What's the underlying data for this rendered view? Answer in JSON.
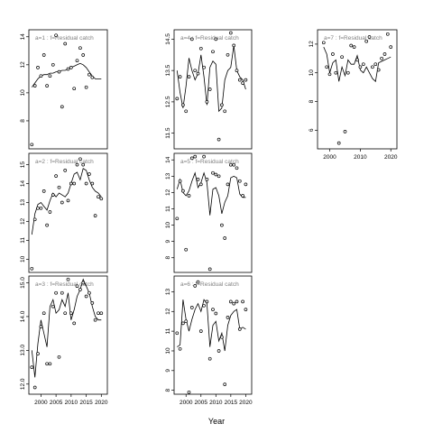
{
  "figure": {
    "xlabel": "Year"
  },
  "chart_data": [
    {
      "type": "scatter",
      "title": "a=1 : f=Residual catch",
      "xlim": [
        1996,
        2022
      ],
      "ylim": [
        6,
        14.5
      ],
      "xticks": [],
      "yticks": [
        8,
        10,
        12,
        14
      ],
      "points": {
        "x": [
          1997,
          1998,
          1999,
          2000,
          2001,
          2002,
          2003,
          2004,
          2005,
          2006,
          2007,
          2008,
          2009,
          2010,
          2011,
          2012,
          2013,
          2014,
          2015,
          2016,
          2017
        ],
        "y": [
          6.3,
          10.5,
          11.8,
          11.2,
          12.7,
          10.5,
          11.2,
          12.0,
          14.1,
          11.5,
          9.0,
          13.5,
          11.7,
          11.8,
          10.3,
          12.3,
          13.2,
          12.7,
          10.4,
          11.3,
          11.1
        ]
      },
      "fit": {
        "x": [
          1997,
          1998,
          1999,
          2000,
          2001,
          2002,
          2003,
          2004,
          2005,
          2006,
          2007,
          2008,
          2009,
          2010,
          2011,
          2012,
          2013,
          2014,
          2015,
          2016,
          2017,
          2018,
          2019,
          2020
        ],
        "y": [
          10.4,
          10.7,
          11.0,
          11.2,
          11.3,
          11.3,
          11.4,
          11.4,
          11.5,
          11.5,
          11.6,
          11.6,
          11.7,
          11.8,
          11.9,
          12.0,
          12.1,
          12.0,
          11.8,
          11.5,
          11.2,
          11.0,
          11.0,
          11.0
        ]
      }
    },
    {
      "type": "scatter",
      "title": "a=2 : f=Residual catch",
      "xlim": [
        1996,
        2022
      ],
      "ylim": [
        9.3,
        15.6
      ],
      "xticks": [],
      "yticks": [
        10,
        11,
        12,
        13,
        14,
        15
      ],
      "points": {
        "x": [
          1997,
          1998,
          1999,
          2000,
          2001,
          2002,
          2003,
          2004,
          2005,
          2006,
          2007,
          2008,
          2009,
          2010,
          2011,
          2012,
          2013,
          2014,
          2015,
          2016,
          2017,
          2018,
          2019,
          2020
        ],
        "y": [
          9.5,
          12.1,
          12.7,
          12.7,
          13.6,
          11.8,
          12.5,
          13.4,
          14.4,
          13.8,
          13.0,
          14.7,
          13.1,
          14.0,
          14.0,
          15.0,
          15.3,
          15.0,
          14.0,
          14.5,
          14.0,
          12.3,
          13.3,
          13.2
        ]
      },
      "fit": {
        "x": [
          1997,
          1998,
          1999,
          2000,
          2001,
          2002,
          2003,
          2004,
          2005,
          2006,
          2007,
          2008,
          2009,
          2010,
          2011,
          2012,
          2013,
          2014,
          2015,
          2016,
          2017,
          2018,
          2019,
          2020
        ],
        "y": [
          11.3,
          12.4,
          12.9,
          13.0,
          12.8,
          12.6,
          13.1,
          13.5,
          13.3,
          13.5,
          13.4,
          13.3,
          13.5,
          14.0,
          14.5,
          14.6,
          14.2,
          14.8,
          14.7,
          14.2,
          13.8,
          13.6,
          13.5,
          13.3
        ]
      }
    },
    {
      "type": "scatter",
      "title": "a=3 : f=Residual catch",
      "xlim": [
        1996,
        2022
      ],
      "ylim": [
        11.7,
        15.2
      ],
      "xticks": [
        2000,
        2005,
        2010,
        2015,
        2020
      ],
      "yticks": [
        12.0,
        13.0,
        14.0,
        15.0
      ],
      "points": {
        "x": [
          1997,
          1998,
          1999,
          2000,
          2001,
          2002,
          2003,
          2004,
          2005,
          2006,
          2007,
          2008,
          2009,
          2010,
          2011,
          2012,
          2013,
          2014,
          2015,
          2016,
          2017,
          2018,
          2019,
          2020
        ],
        "y": [
          12.5,
          11.9,
          12.9,
          13.7,
          14.1,
          12.6,
          12.6,
          14.3,
          14.7,
          12.8,
          14.7,
          14.1,
          15.1,
          14.1,
          13.8,
          14.9,
          14.8,
          15.0,
          14.6,
          14.7,
          14.4,
          13.9,
          14.1,
          14.1
        ]
      },
      "fit": {
        "x": [
          1997,
          1998,
          1999,
          2000,
          2001,
          2002,
          2003,
          2004,
          2005,
          2006,
          2007,
          2008,
          2009,
          2010,
          2011,
          2012,
          2013,
          2014,
          2015,
          2016,
          2017,
          2018,
          2019,
          2020
        ],
        "y": [
          13.0,
          12.2,
          13.2,
          13.9,
          13.5,
          13.1,
          14.3,
          14.5,
          14.1,
          14.2,
          14.5,
          14.3,
          14.7,
          13.9,
          14.2,
          14.6,
          14.8,
          15.1,
          14.9,
          14.7,
          14.3,
          14.0,
          13.9,
          13.9
        ]
      }
    },
    {
      "type": "scatter",
      "title": "a=4 : f=Residual catch",
      "xlim": [
        1996,
        2022
      ],
      "ylim": [
        11.0,
        14.8
      ],
      "xticks": [],
      "yticks": [
        11.5,
        12.5,
        13.5,
        14.5
      ],
      "points": {
        "x": [
          1997,
          1998,
          1999,
          2000,
          2001,
          2002,
          2003,
          2004,
          2005,
          2006,
          2007,
          2008,
          2009,
          2010,
          2011,
          2012,
          2013,
          2014,
          2015,
          2016,
          2017,
          2018,
          2019,
          2020
        ],
        "y": [
          12.6,
          13.3,
          12.4,
          12.2,
          13.3,
          14.5,
          13.5,
          13.4,
          14.2,
          13.6,
          12.5,
          12.9,
          14.1,
          14.5,
          11.3,
          12.4,
          12.2,
          14.0,
          14.7,
          14.3,
          13.5,
          13.2,
          13.1,
          13.2
        ]
      },
      "fit": {
        "x": [
          1997,
          1998,
          1999,
          2000,
          2001,
          2002,
          2003,
          2004,
          2005,
          2006,
          2007,
          2008,
          2009,
          2010,
          2011,
          2012,
          2013,
          2014,
          2015,
          2016,
          2017,
          2018,
          2019,
          2020
        ],
        "y": [
          13.5,
          12.8,
          12.3,
          13.0,
          13.9,
          13.5,
          13.2,
          13.4,
          14.0,
          13.3,
          12.4,
          13.6,
          13.8,
          13.7,
          12.2,
          12.3,
          13.2,
          13.5,
          13.6,
          14.3,
          13.5,
          13.3,
          13.2,
          12.9
        ]
      }
    },
    {
      "type": "scatter",
      "title": "a=5 : f=Residual catch",
      "xlim": [
        1996,
        2022
      ],
      "ylim": [
        7.1,
        14.4
      ],
      "xticks": [],
      "yticks": [
        8,
        9,
        10,
        11,
        12,
        13,
        14
      ],
      "points": {
        "x": [
          1997,
          1998,
          1999,
          2000,
          2001,
          2002,
          2003,
          2004,
          2005,
          2006,
          2007,
          2008,
          2009,
          2010,
          2011,
          2012,
          2013,
          2014,
          2015,
          2016,
          2017,
          2018,
          2019,
          2020
        ],
        "y": [
          10.4,
          12.7,
          12.1,
          8.5,
          11.8,
          14.1,
          14.2,
          12.8,
          12.5,
          14.2,
          12.8,
          7.3,
          13.2,
          13.1,
          13.0,
          10.0,
          9.2,
          12.5,
          13.7,
          13.7,
          13.5,
          12.7,
          11.8,
          12.5
        ]
      },
      "fit": {
        "x": [
          1997,
          1998,
          1999,
          2000,
          2001,
          2002,
          2003,
          2004,
          2005,
          2006,
          2007,
          2008,
          2009,
          2010,
          2011,
          2012,
          2013,
          2014,
          2015,
          2016,
          2017,
          2018,
          2019,
          2020
        ],
        "y": [
          12.2,
          12.8,
          12.0,
          11.8,
          12.1,
          12.7,
          13.2,
          12.3,
          12.6,
          13.2,
          12.6,
          10.6,
          12.2,
          12.3,
          11.8,
          10.7,
          11.4,
          11.8,
          12.9,
          13.0,
          12.9,
          11.9,
          11.7,
          11.7
        ]
      }
    },
    {
      "type": "scatter",
      "title": "a=6 : f=Residual catch",
      "xlim": [
        1996,
        2022
      ],
      "ylim": [
        7.8,
        13.8
      ],
      "xticks": [
        2000,
        2005,
        2010,
        2015,
        2020
      ],
      "yticks": [
        8,
        9,
        10,
        11,
        12,
        13
      ],
      "points": {
        "x": [
          1997,
          1998,
          1999,
          2000,
          2001,
          2002,
          2003,
          2004,
          2005,
          2006,
          2007,
          2008,
          2009,
          2010,
          2011,
          2012,
          2013,
          2014,
          2015,
          2016,
          2017,
          2018,
          2019,
          2020
        ],
        "y": [
          10.9,
          10.1,
          11.4,
          11.5,
          7.9,
          12.2,
          13.3,
          13.5,
          11.0,
          12.3,
          12.5,
          9.6,
          12.1,
          11.9,
          10.0,
          10.7,
          8.3,
          11.7,
          12.5,
          12.4,
          12.5,
          11.1,
          12.5,
          12.1
        ]
      },
      "fit": {
        "x": [
          1997,
          1998,
          1999,
          2000,
          2001,
          2002,
          2003,
          2004,
          2005,
          2006,
          2007,
          2008,
          2009,
          2010,
          2011,
          2012,
          2013,
          2014,
          2015,
          2016,
          2017,
          2018,
          2019,
          2020
        ],
        "y": [
          10.2,
          10.3,
          12.6,
          11.6,
          11.0,
          11.6,
          12.1,
          12.4,
          12.0,
          12.6,
          12.4,
          10.2,
          11.3,
          11.5,
          10.5,
          10.9,
          10.0,
          11.3,
          11.8,
          12.0,
          12.1,
          11.1,
          11.2,
          11.1
        ]
      }
    },
    {
      "type": "scatter",
      "title": "a=7 : f=Residual catch",
      "xlim": [
        1996,
        2022
      ],
      "ylim": [
        4.7,
        13.0
      ],
      "xticks": [
        2000,
        2010,
        2020
      ],
      "yticks": [
        6,
        8,
        10,
        12
      ],
      "points": {
        "x": [
          1998,
          1999,
          2000,
          2001,
          2002,
          2003,
          2004,
          2005,
          2006,
          2007,
          2008,
          2009,
          2010,
          2011,
          2012,
          2013,
          2014,
          2015,
          2016,
          2017,
          2018,
          2019,
          2020
        ],
        "y": [
          12.1,
          10.4,
          9.9,
          11.3,
          10.0,
          5.1,
          11.1,
          5.9,
          10.0,
          11.9,
          11.8,
          10.9,
          10.4,
          10.6,
          12.2,
          12.5,
          10.4,
          10.6,
          10.2,
          11.0,
          11.3,
          12.7,
          11.8
        ]
      },
      "fit": {
        "x": [
          1998,
          1999,
          2000,
          2001,
          2002,
          2003,
          2004,
          2005,
          2006,
          2007,
          2008,
          2009,
          2010,
          2011,
          2012,
          2013,
          2014,
          2015,
          2016,
          2017,
          2018,
          2019,
          2020
        ],
        "y": [
          11.8,
          11.3,
          10.0,
          10.7,
          10.9,
          9.4,
          10.4,
          9.8,
          10.9,
          10.6,
          10.6,
          11.2,
          10.2,
          10.0,
          10.4,
          10.0,
          9.6,
          9.4,
          10.7,
          10.8,
          10.9,
          11.0,
          11.1
        ]
      }
    }
  ]
}
